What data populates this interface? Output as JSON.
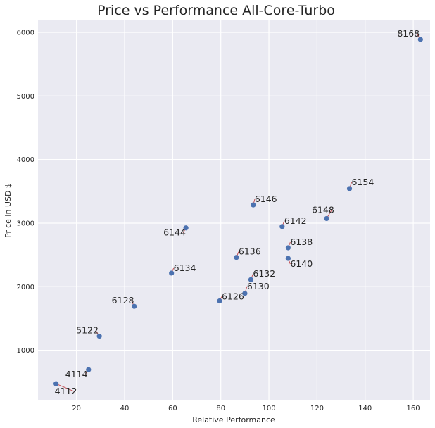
{
  "chart_data": {
    "type": "scatter",
    "title": "Price vs Performance All-Core-Turbo",
    "xlabel": "Relative Performance",
    "ylabel": "Price in USD $",
    "xlim": [
      4,
      167
    ],
    "ylim": [
      220,
      6200
    ],
    "xticks": [
      20,
      40,
      60,
      80,
      100,
      120,
      140,
      160
    ],
    "yticks": [
      1000,
      2000,
      3000,
      4000,
      5000,
      6000
    ],
    "grid": true,
    "background": "#eaeaf2",
    "grid_color": "#ffffff",
    "marker_color": "#4c72b0",
    "annotation_line_color": "#c44e52",
    "points": [
      {
        "label": "8168",
        "x": 163.0,
        "y": 5890
      },
      {
        "label": "6154",
        "x": 133.5,
        "y": 3543
      },
      {
        "label": "6148",
        "x": 124.0,
        "y": 3072
      },
      {
        "label": "6146",
        "x": 93.5,
        "y": 3286
      },
      {
        "label": "6142",
        "x": 105.5,
        "y": 2946
      },
      {
        "label": "6144",
        "x": 65.5,
        "y": 2925
      },
      {
        "label": "6138",
        "x": 108.0,
        "y": 2612
      },
      {
        "label": "6140",
        "x": 108.0,
        "y": 2445
      },
      {
        "label": "6136",
        "x": 86.5,
        "y": 2460
      },
      {
        "label": "6134",
        "x": 59.5,
        "y": 2214
      },
      {
        "label": "6132",
        "x": 92.5,
        "y": 2111
      },
      {
        "label": "6130",
        "x": 90.0,
        "y": 1894
      },
      {
        "label": "6126",
        "x": 79.5,
        "y": 1776
      },
      {
        "label": "6128",
        "x": 44.0,
        "y": 1691
      },
      {
        "label": "5122",
        "x": 29.5,
        "y": 1221
      },
      {
        "label": "4114",
        "x": 25.0,
        "y": 694
      },
      {
        "label": "4112",
        "x": 11.5,
        "y": 473
      }
    ]
  }
}
